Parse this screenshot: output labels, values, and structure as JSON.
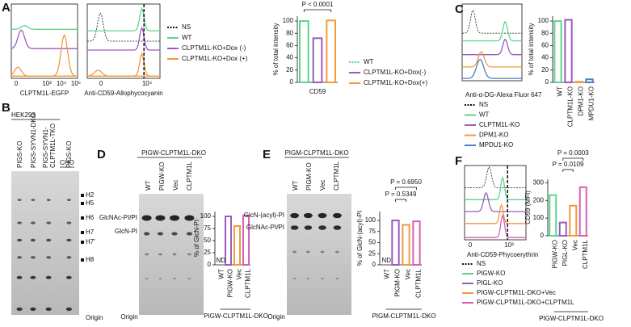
{
  "A": {
    "label": "A",
    "hist1": {
      "xlabel": "CLPTM1L-EGFP",
      "xticks": [
        "0",
        "10³",
        "10⁴",
        "10⁵"
      ]
    },
    "hist2": {
      "xlabel": "Anti-CD59-Allophycocyanin",
      "xticks": [
        "0",
        "10⁴"
      ]
    },
    "legend": [
      "NS",
      "WT",
      "CLPTM1L-KO+Dox (-)",
      "CLPTM1L-KO+Dox (+)"
    ],
    "bars": {
      "ylabel": "% of total intensity",
      "ylim": [
        0,
        108
      ],
      "yticks": [
        0,
        20,
        40,
        60,
        80,
        100
      ],
      "xlabel": "CD59",
      "values": [
        100,
        72,
        101
      ],
      "colors": [
        "#5fd38d",
        "#9a5bbf",
        "#f39a3a"
      ],
      "legend": [
        "WT",
        "CLPTM1L-KO+Dox(-)",
        "CLPTM1L-KO+Dox(+)"
      ],
      "comparisons": [
        "P < 0.0001"
      ]
    }
  },
  "B": {
    "label": "B",
    "cell_line": "HEK293",
    "lanes": [
      [
        "PIGS-KO"
      ],
      [
        "PIGS-SYVN1-DKO"
      ],
      [
        "PIGS-SYVN1-",
        "CLPTM1L-TKO"
      ],
      [
        "PIGS-KO"
      ]
    ],
    "cho": "CHO",
    "bands": [
      "H2",
      "H5",
      "H6",
      "H7",
      "H7'",
      "H8"
    ],
    "origin": "Origin"
  },
  "C": {
    "label": "C",
    "hist": {
      "xlabel": "Anti-α-DG-Alexa Fluor 647"
    },
    "legend": [
      "NS",
      "WT",
      "CLPTM1L-KO",
      "DPM1-KO",
      "MPDU1-KO"
    ],
    "bars": {
      "ylabel": "% of total intensity",
      "ylim": [
        0,
        108
      ],
      "yticks": [
        0,
        20,
        40,
        60,
        80,
        100
      ],
      "categories": [
        "WT",
        "CLPTM1L-KO",
        "DPM1-KO",
        "MPDU1-KO"
      ],
      "values": [
        100,
        102,
        1,
        5
      ],
      "colors": [
        "#5fd38d",
        "#9a5bbf",
        "#f39a3a",
        "#4a7fc9"
      ]
    }
  },
  "D": {
    "label": "D",
    "title": "PIGW-CLPTM1L-DKO",
    "lanes": [
      "WT",
      "PIGW-KO",
      "Vec",
      "CLPTM1L"
    ],
    "bands": [
      "GlcNAc-PI/PI",
      "GlcN-PI"
    ],
    "origin": "Origin",
    "bars": {
      "ylabel": "% of GlcN-PI",
      "ylim": [
        0,
        110
      ],
      "yticks": [
        0,
        25,
        50,
        75,
        100
      ],
      "categories": [
        "WT",
        "PIGW-KO",
        "Vec",
        "CLPTM1L"
      ],
      "values": [
        null,
        100,
        80,
        102
      ],
      "colors": [
        "#888888",
        "#9a5bbf",
        "#f39a3a",
        "#d660b5"
      ],
      "nd": "ND",
      "group": "PIGW-CLPTM1L-DKO"
    }
  },
  "E": {
    "label": "E",
    "title": "PIGM-CLPTM1L-DKO",
    "lanes": [
      "WT",
      "PIGM-KO",
      "Vec",
      "CLPTM1L"
    ],
    "bands": [
      "GlcN-(acyl)-PI",
      "GlcNAc-PI/PI"
    ],
    "origin": "Origin",
    "bars": {
      "ylabel": "% of GlcN-(acyl)-PI",
      "ylim": [
        0,
        120
      ],
      "yticks": [
        0,
        25,
        50,
        75,
        100
      ],
      "categories": [
        "WT",
        "PIGM-KO",
        "Vec",
        "CLPTM1L"
      ],
      "values": [
        null,
        100,
        90,
        98
      ],
      "colors": [
        "#888888",
        "#9a5bbf",
        "#f39a3a",
        "#d660b5"
      ],
      "nd": "ND",
      "group": "PIGM-CLPTM1L-DKO",
      "comparisons": [
        "P = 0.5349",
        "P = 0.6950"
      ]
    }
  },
  "F": {
    "label": "F",
    "hist": {
      "xlabel": "Anti-CD59-Phycoerythrin",
      "xticks": [
        "0",
        "10³"
      ]
    },
    "legend": [
      "NS",
      "PIGW-KO",
      "PIGL-KO",
      "PIGW-CLPTM1L-DKO+Vec",
      "PIGW-CLPTM1L-DKO+CLPTM1L"
    ],
    "bars": {
      "ylabel": "CD59 (MFI)",
      "ylim": [
        0,
        320
      ],
      "yticks": [
        0,
        100,
        200,
        300
      ],
      "categories": [
        "PIGW-KO",
        "PIGL-KO",
        "Vec",
        "CLPTM1L"
      ],
      "values": [
        230,
        75,
        170,
        275
      ],
      "colors": [
        "#5fd38d",
        "#9a5bbf",
        "#f39a3a",
        "#d660b5"
      ],
      "group": "PIGW-CLPTM1L-DKO",
      "comparisons": [
        "P = 0.0109",
        "P = 0.0003"
      ]
    }
  }
}
